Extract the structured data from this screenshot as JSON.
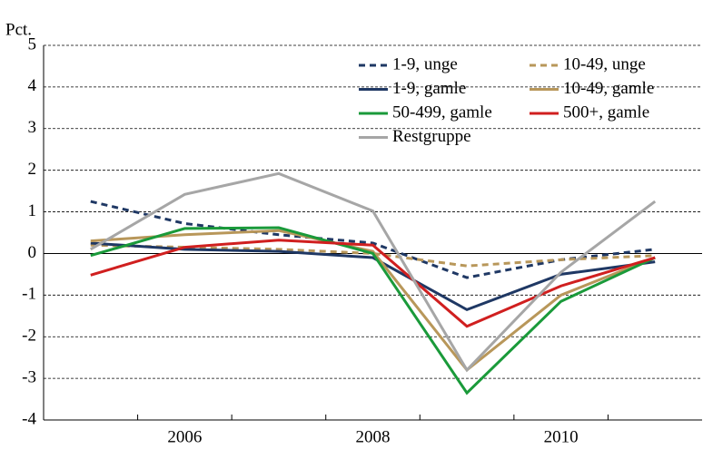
{
  "chart_data": {
    "type": "line",
    "y_label": "Pct.",
    "categories": [
      null,
      "2006",
      null,
      "2008",
      null,
      "2010",
      null
    ],
    "ylim": [
      -4,
      5
    ],
    "yticks": [
      -4,
      -3,
      -2,
      -1,
      0,
      1,
      2,
      3,
      4,
      5
    ],
    "grid": true,
    "series": [
      {
        "name": "1-9, unge",
        "color": "#1f3864",
        "dashed": true,
        "values": [
          1.25,
          0.72,
          0.45,
          0.25,
          -0.58,
          -0.15,
          0.1
        ]
      },
      {
        "name": "10-49, unge",
        "color": "#b8975a",
        "dashed": true,
        "values": [
          0.2,
          0.15,
          0.1,
          0.0,
          -0.3,
          -0.15,
          -0.05
        ]
      },
      {
        "name": "1-9, gamle",
        "color": "#1f3864",
        "dashed": false,
        "values": [
          0.25,
          0.1,
          0.05,
          -0.1,
          -1.35,
          -0.5,
          -0.2
        ]
      },
      {
        "name": "10-49, gamle",
        "color": "#b8975a",
        "dashed": false,
        "values": [
          0.3,
          0.45,
          0.55,
          0.05,
          -2.8,
          -1.0,
          -0.1
        ]
      },
      {
        "name": "50-499, gamle",
        "color": "#1a9a3a",
        "dashed": false,
        "values": [
          -0.05,
          0.6,
          0.62,
          0.0,
          -3.35,
          -1.15,
          -0.1
        ]
      },
      {
        "name": "500+, gamle",
        "color": "#d01f1f",
        "dashed": false,
        "values": [
          -0.52,
          0.15,
          0.32,
          0.2,
          -1.75,
          -0.78,
          -0.1
        ]
      },
      {
        "name": "Restgruppe",
        "color": "#a6a6a6",
        "dashed": false,
        "values": [
          0.1,
          1.42,
          1.92,
          1.02,
          -2.8,
          -0.45,
          1.25
        ]
      }
    ]
  }
}
